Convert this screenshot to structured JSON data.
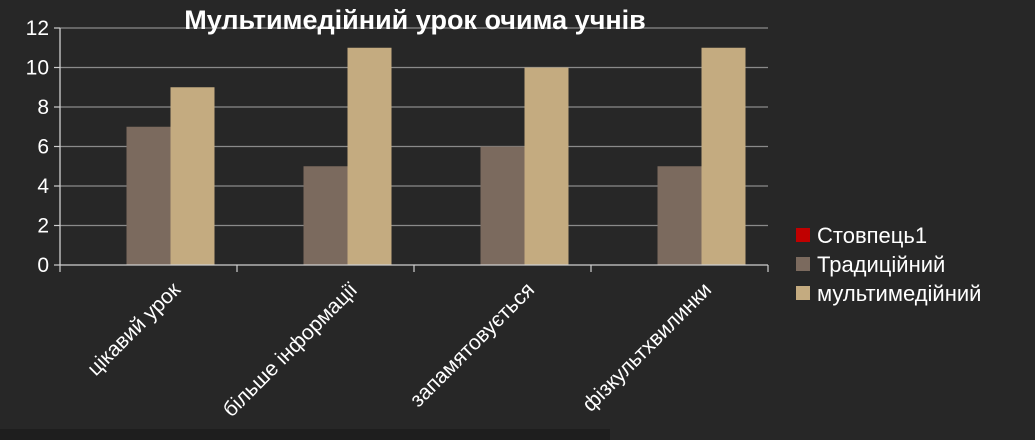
{
  "chart_data": {
    "type": "bar",
    "title": "Мультимедійний урок очима учнів",
    "categories": [
      "цікавий урок",
      "більше інформації",
      "запамятовується",
      "фізкультхвилинки"
    ],
    "series": [
      {
        "name": "Стовпець1",
        "color": "#c00000",
        "values": [
          0,
          0,
          0,
          0
        ]
      },
      {
        "name": "Традиційний",
        "color": "#7b6a5e",
        "values": [
          7,
          5,
          6,
          5
        ]
      },
      {
        "name": "мультимедійний",
        "color": "#c4ab80",
        "values": [
          9,
          11,
          10,
          11
        ]
      }
    ],
    "ylim": [
      0,
      12
    ],
    "yticks": [
      0,
      2,
      4,
      6,
      8,
      10,
      12
    ],
    "xlabel": "",
    "ylabel": "",
    "grid": true,
    "legend_position": "right"
  },
  "colors": {
    "background": "#272727",
    "grid": "#8a8a8a",
    "axis": "#cfcfcf",
    "text": "#ffffff"
  }
}
